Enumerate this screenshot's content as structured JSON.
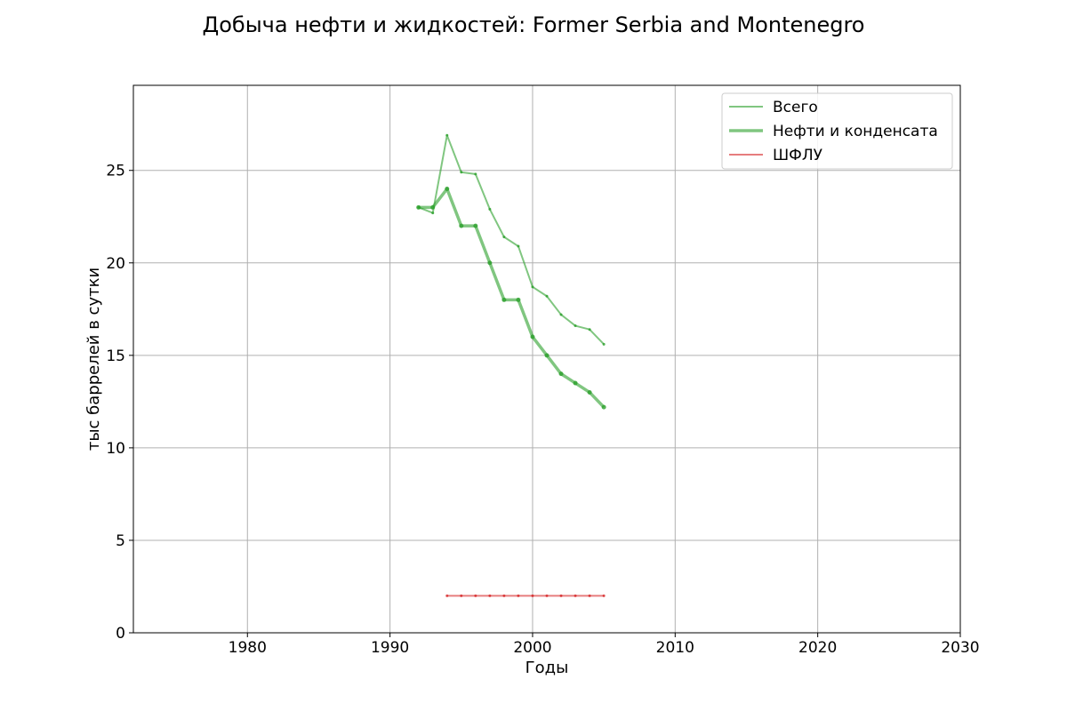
{
  "chart_data": {
    "type": "line",
    "title": "Добыча нефти и жидкостей: Former Serbia and Montenegro",
    "xlabel": "Годы",
    "ylabel": "тыс баррелей в сутки",
    "xlim": [
      1972,
      2030
    ],
    "ylim": [
      0,
      29.6
    ],
    "xticks": [
      1980,
      1990,
      2000,
      2010,
      2020,
      2030
    ],
    "yticks": [
      0,
      5,
      10,
      15,
      20,
      25
    ],
    "grid": true,
    "legend_position": "top-right",
    "series": [
      {
        "name": "Всего",
        "color": "#2ca02c",
        "x": [
          1992,
          1993,
          1994,
          1995,
          1996,
          1997,
          1998,
          1999,
          2000,
          2001,
          2002,
          2003,
          2004,
          2005
        ],
        "values": [
          23.0,
          22.7,
          26.9,
          24.9,
          24.8,
          22.9,
          21.4,
          20.9,
          18.7,
          18.2,
          17.2,
          16.6,
          16.4,
          15.6
        ]
      },
      {
        "name": "Нефти и конденсата",
        "color": "#2ca02c",
        "x": [
          1992,
          1993,
          1994,
          1995,
          1996,
          1997,
          1998,
          1999,
          2000,
          2001,
          2002,
          2003,
          2004,
          2005
        ],
        "values": [
          23.0,
          23.0,
          24.0,
          22.0,
          22.0,
          20.0,
          18.0,
          18.0,
          16.0,
          15.0,
          14.0,
          13.5,
          13.0,
          12.2
        ]
      },
      {
        "name": "ШФЛУ",
        "color": "#d62728",
        "x": [
          1994,
          1995,
          1996,
          1997,
          1998,
          1999,
          2000,
          2001,
          2002,
          2003,
          2004,
          2005
        ],
        "values": [
          2.0,
          2.0,
          2.0,
          2.0,
          2.0,
          2.0,
          2.0,
          2.0,
          2.0,
          2.0,
          2.0,
          2.0
        ]
      }
    ]
  }
}
